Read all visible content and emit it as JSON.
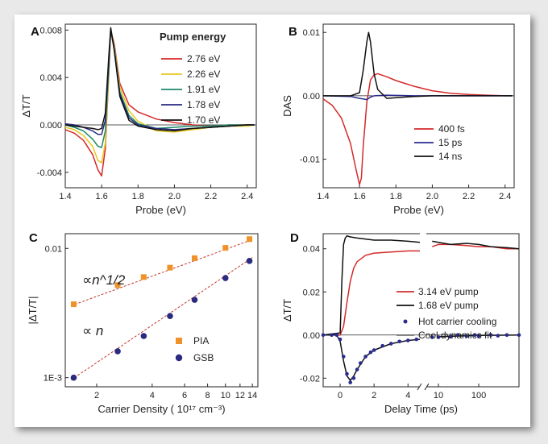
{
  "chart_data": [
    {
      "panel": "A",
      "type": "line",
      "xlabel": "Probe (eV)",
      "ylabel": "ΔT/T",
      "xlim": [
        1.4,
        2.45
      ],
      "ylim": [
        -0.0053,
        0.0085
      ],
      "xticks": [
        "1.4",
        "1.6",
        "1.8",
        "2.0",
        "2.2",
        "2.4"
      ],
      "yticks": [
        "-0.004",
        "0.000",
        "0.004",
        "0.008"
      ],
      "legend_title": "Pump energy",
      "legend_position": "top-right",
      "grid": false,
      "series": [
        {
          "name": "2.76 eV",
          "color": "#d42a2a",
          "x": [
            1.4,
            1.45,
            1.5,
            1.55,
            1.58,
            1.6,
            1.62,
            1.64,
            1.65,
            1.67,
            1.7,
            1.75,
            1.8,
            1.9,
            2.0,
            2.1,
            2.2,
            2.3,
            2.4,
            2.44
          ],
          "y": [
            -0.0004,
            -0.0007,
            -0.0013,
            -0.0025,
            -0.0038,
            -0.0043,
            -0.002,
            0.0045,
            0.008,
            0.0068,
            0.0035,
            0.0017,
            0.0011,
            0.0005,
            0.0002,
            0.0,
            -0.0001,
            0.0,
            0.0,
            0.0
          ]
        },
        {
          "name": "2.26 eV",
          "color": "#e8c81e",
          "x": [
            1.4,
            1.45,
            1.5,
            1.55,
            1.58,
            1.6,
            1.62,
            1.64,
            1.65,
            1.67,
            1.7,
            1.75,
            1.8,
            1.9,
            2.0,
            2.1,
            2.2,
            2.3,
            2.4,
            2.44
          ],
          "y": [
            -0.0002,
            -0.0004,
            -0.0009,
            -0.0018,
            -0.003,
            -0.0032,
            -0.0015,
            0.0046,
            0.008,
            0.0066,
            0.0032,
            0.0012,
            0.0003,
            -0.0005,
            -0.0006,
            -0.0004,
            -0.0002,
            -0.0001,
            -0.0001,
            0.0
          ]
        },
        {
          "name": "1.91 eV",
          "color": "#1d8a68",
          "x": [
            1.4,
            1.45,
            1.5,
            1.55,
            1.58,
            1.6,
            1.62,
            1.64,
            1.65,
            1.67,
            1.7,
            1.75,
            1.8,
            1.9,
            2.0,
            2.1,
            2.2,
            2.3,
            2.4,
            2.44
          ],
          "y": [
            0.0,
            -0.0002,
            -0.0005,
            -0.0012,
            -0.0018,
            -0.0019,
            -0.0005,
            0.005,
            0.008,
            0.0064,
            0.0028,
            0.0008,
            0.0001,
            -0.0003,
            -0.0002,
            -0.0001,
            -0.0001,
            0.0,
            0.0,
            0.0
          ]
        },
        {
          "name": "1.78 eV",
          "color": "#2a2a80",
          "x": [
            1.4,
            1.45,
            1.5,
            1.55,
            1.58,
            1.6,
            1.62,
            1.64,
            1.65,
            1.67,
            1.7,
            1.75,
            1.8,
            1.9,
            2.0,
            2.1,
            2.2,
            2.3,
            2.4,
            2.44
          ],
          "y": [
            0.0001,
            0.0,
            -0.0002,
            -0.0005,
            -0.0008,
            -0.0008,
            0.0004,
            0.0055,
            0.0081,
            0.0063,
            0.0026,
            0.0006,
            0.0,
            -0.0003,
            -0.0004,
            -0.0003,
            -0.0002,
            -0.0001,
            0.0,
            0.0
          ]
        },
        {
          "name": "1.70 eV",
          "color": "#111111",
          "x": [
            1.4,
            1.45,
            1.5,
            1.55,
            1.58,
            1.6,
            1.62,
            1.64,
            1.65,
            1.67,
            1.7,
            1.75,
            1.8,
            1.9,
            2.0,
            2.1,
            2.2,
            2.3,
            2.4,
            2.44
          ],
          "y": [
            0.0,
            -0.0001,
            -0.0002,
            -0.0003,
            -0.0004,
            -0.0003,
            0.001,
            0.006,
            0.0082,
            0.0062,
            0.0024,
            0.0004,
            -0.0001,
            -0.0004,
            -0.0005,
            -0.0003,
            -0.0002,
            -0.0001,
            0.0,
            0.0
          ]
        }
      ]
    },
    {
      "panel": "B",
      "type": "line",
      "xlabel": "Probe (eV)",
      "ylabel": "DAS",
      "xlim": [
        1.4,
        2.45
      ],
      "ylim": [
        -0.0145,
        0.0113
      ],
      "xticks": [
        "1.4",
        "1.6",
        "1.8",
        "2.0",
        "2.2",
        "2.4"
      ],
      "yticks": [
        "-0.01",
        "0.00",
        "0.01"
      ],
      "legend_position": "middle-right",
      "grid": false,
      "series": [
        {
          "name": "400 fs",
          "color": "#d42a2a",
          "x": [
            1.4,
            1.45,
            1.5,
            1.55,
            1.58,
            1.6,
            1.61,
            1.62,
            1.64,
            1.66,
            1.68,
            1.7,
            1.75,
            1.8,
            1.9,
            2.0,
            2.1,
            2.2,
            2.3,
            2.4,
            2.44
          ],
          "y": [
            -0.0005,
            -0.0015,
            -0.0035,
            -0.0075,
            -0.0115,
            -0.014,
            -0.013,
            -0.008,
            -0.001,
            0.0025,
            0.0033,
            0.0035,
            0.003,
            0.0024,
            0.0015,
            0.0008,
            0.0004,
            0.0002,
            0.0001,
            0.0,
            0.0
          ]
        },
        {
          "name": "15 ps",
          "color": "#2a2a90",
          "x": [
            1.4,
            1.55,
            1.6,
            1.62,
            1.64,
            1.66,
            1.68,
            1.75,
            1.9,
            2.1,
            2.44
          ],
          "y": [
            0.0,
            -0.0001,
            -0.0004,
            -0.0005,
            -0.0006,
            -0.0002,
            0.0,
            0.0001,
            0.0,
            0.0,
            0.0
          ]
        },
        {
          "name": "14 ns",
          "color": "#111111",
          "x": [
            1.4,
            1.55,
            1.6,
            1.62,
            1.64,
            1.65,
            1.66,
            1.68,
            1.7,
            1.75,
            1.8,
            1.9,
            2.0,
            2.1,
            2.44
          ],
          "y": [
            0.0,
            0.0,
            0.0005,
            0.004,
            0.0085,
            0.01,
            0.0085,
            0.0035,
            0.001,
            -0.0004,
            -0.0003,
            -0.0001,
            0.0,
            0.0,
            0.0
          ]
        }
      ]
    },
    {
      "panel": "C",
      "type": "scatter",
      "xlabel": "Carrier Density ( 10¹⁷ cm⁻³)",
      "ylabel": "|ΔT/T|",
      "xscale": "log",
      "yscale": "log",
      "xlim": [
        1.35,
        15
      ],
      "ylim": [
        0.00085,
        0.013
      ],
      "xticks": [
        "2",
        "4",
        "6",
        "8",
        "10",
        "12",
        "14"
      ],
      "yticks": [
        "1E-3",
        "0.01"
      ],
      "legend_position": "bottom-right",
      "grid": false,
      "annotations": [
        "∝n^1/2",
        "∝ n"
      ],
      "series": [
        {
          "name": "PIA",
          "color": "#f0922a",
          "marker": "square",
          "x": [
            1.5,
            2.6,
            3.6,
            5.0,
            6.8,
            10.0,
            13.5
          ],
          "y": [
            0.0037,
            0.0052,
            0.006,
            0.0071,
            0.0084,
            0.0101,
            0.0118
          ]
        },
        {
          "name": "GSB",
          "color": "#2a2a80",
          "marker": "circle",
          "x": [
            1.5,
            2.6,
            3.6,
            5.0,
            6.8,
            10.0,
            13.5
          ],
          "y": [
            0.001,
            0.0016,
            0.0021,
            0.003,
            0.004,
            0.0059,
            0.008
          ]
        }
      ],
      "fit_lines": [
        {
          "for": "PIA",
          "color": "#c0392b",
          "x": [
            1.45,
            14
          ],
          "y": [
            0.0036,
            0.0117
          ]
        },
        {
          "for": "GSB",
          "color": "#c0392b",
          "x": [
            1.45,
            14
          ],
          "y": [
            0.00096,
            0.0085
          ]
        }
      ]
    },
    {
      "panel": "D",
      "type": "line",
      "xlabel": "Delay Time (ps)",
      "ylabel": "ΔT/T",
      "xscale": "linear-then-log (axis break)",
      "xlim": [
        -1,
        1000
      ],
      "ylim": [
        -0.024,
        0.047
      ],
      "xticks": [
        "0",
        "2",
        "4",
        "10",
        "100"
      ],
      "yticks": [
        "-0.02",
        "0.00",
        "0.02",
        "0.04"
      ],
      "legend_position": "middle-right",
      "grid": false,
      "series": [
        {
          "name": "3.14 eV pump",
          "color": "#d42a2a",
          "x": [
            -1,
            0,
            0.2,
            0.4,
            0.6,
            0.8,
            1.0,
            1.5,
            2.0,
            3.0,
            4.0,
            4.7,
            7,
            10,
            20,
            50,
            100,
            200,
            500,
            1000
          ],
          "y": [
            0,
            0,
            0.004,
            0.015,
            0.025,
            0.031,
            0.034,
            0.037,
            0.038,
            0.0385,
            0.039,
            0.039,
            0.041,
            0.042,
            0.042,
            0.0415,
            0.041,
            0.041,
            0.04,
            0.04
          ]
        },
        {
          "name": "1.68 eV pump",
          "color": "#111111",
          "x": [
            -1,
            0,
            0.1,
            0.2,
            0.3,
            0.4,
            0.6,
            1.0,
            2.0,
            3.0,
            4.0,
            4.7,
            7,
            10,
            20,
            50,
            100,
            200,
            500,
            1000
          ],
          "y": [
            0,
            0.001,
            0.025,
            0.042,
            0.045,
            0.046,
            0.0455,
            0.045,
            0.044,
            0.044,
            0.0435,
            0.043,
            0.0435,
            0.043,
            0.042,
            0.0425,
            0.042,
            0.041,
            0.0405,
            0.04
          ]
        },
        {
          "name": "Hot carrier cooling",
          "color": "#2a2a90",
          "marker": "circle",
          "x": [
            -1,
            -0.5,
            -0.2,
            0,
            0.2,
            0.4,
            0.6,
            0.8,
            1.0,
            1.2,
            1.5,
            1.8,
            2.0,
            2.5,
            3.0,
            3.5,
            4.0,
            4.5,
            7,
            10,
            20,
            30,
            50,
            80,
            100,
            200,
            300,
            500,
            1000
          ],
          "y": [
            0,
            0,
            0,
            -0.002,
            -0.01,
            -0.018,
            -0.022,
            -0.02,
            -0.016,
            -0.013,
            -0.01,
            -0.008,
            -0.007,
            -0.005,
            -0.004,
            -0.003,
            -0.0025,
            -0.002,
            -0.001,
            -0.001,
            -0.0008,
            0,
            -0.0005,
            0,
            -0.0004,
            0,
            -0.0003,
            0,
            0
          ]
        },
        {
          "name": "Cool dynamics fit",
          "color": "#111111",
          "x": [
            -1,
            -0.2,
            0,
            0.2,
            0.4,
            0.6,
            0.8,
            1.0,
            1.5,
            2.0,
            3.0,
            4.0,
            4.7,
            10,
            100,
            1000
          ],
          "y": [
            0,
            0,
            -0.003,
            -0.012,
            -0.019,
            -0.021,
            -0.019,
            -0.016,
            -0.01,
            -0.007,
            -0.004,
            -0.0025,
            -0.002,
            -0.0008,
            -0.0002,
            0
          ]
        }
      ]
    }
  ],
  "panels": {
    "A": {
      "letter": "A"
    },
    "B": {
      "letter": "B"
    },
    "C": {
      "letter": "C"
    },
    "D": {
      "letter": "D"
    }
  }
}
